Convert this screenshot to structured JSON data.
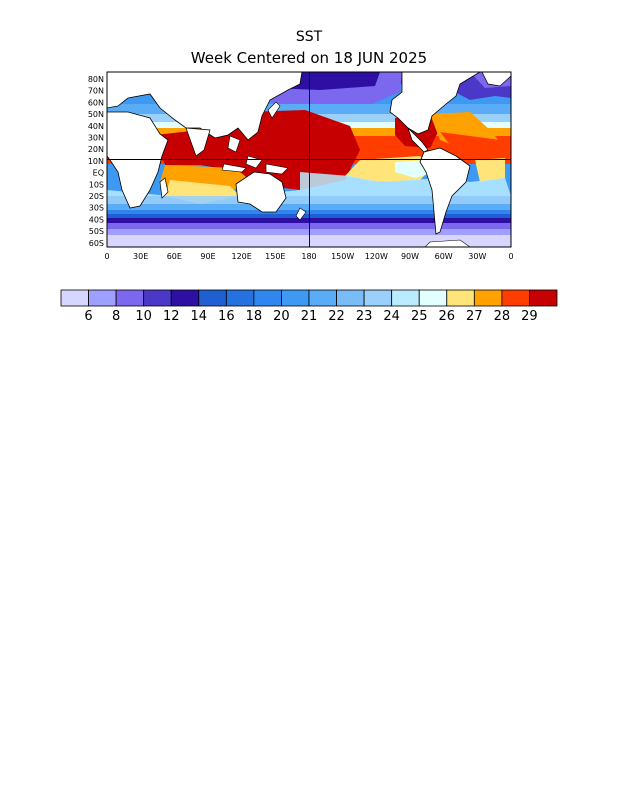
{
  "title": "SST",
  "subtitle": "Week Centered on 18 JUN 2025",
  "map": {
    "lat_labels": [
      "80N",
      "70N",
      "60N",
      "50N",
      "40N",
      "30N",
      "20N",
      "10N",
      "EQ",
      "10S",
      "20S",
      "30S",
      "40S",
      "50S",
      "60S"
    ],
    "lon_labels": [
      "0",
      "30E",
      "60E",
      "90E",
      "120E",
      "150E",
      "180",
      "150W",
      "120W",
      "90W",
      "60W",
      "30W",
      "0"
    ]
  },
  "colorbar": {
    "colors": [
      "#d6d6ff",
      "#9f9fff",
      "#7b68ee",
      "#4b38c8",
      "#2d0fa4",
      "#1f5fd1",
      "#2671e0",
      "#2f86ee",
      "#3e99f3",
      "#5aacf6",
      "#79bcf8",
      "#9bd0fa",
      "#b9ecff",
      "#e1ffff",
      "#ffe47a",
      "#ffa200",
      "#ff3d00",
      "#c60000"
    ],
    "labels": [
      "6",
      "8",
      "10",
      "12",
      "14",
      "16",
      "18",
      "20",
      "21",
      "22",
      "23",
      "24",
      "25",
      "26",
      "27",
      "28",
      "29"
    ]
  }
}
